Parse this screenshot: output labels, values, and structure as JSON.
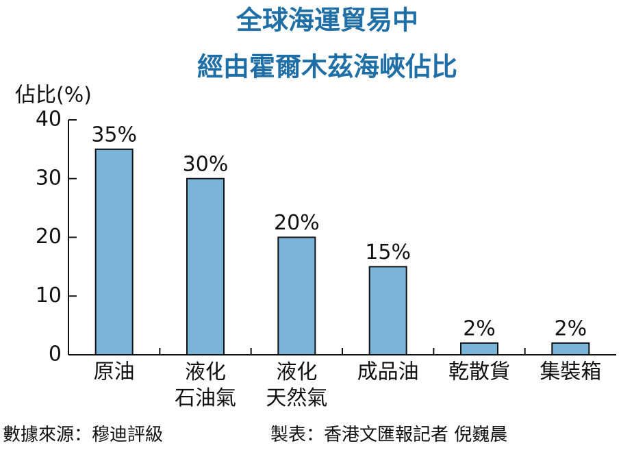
{
  "chart_data": {
    "type": "bar",
    "title": [
      "全球海運貿易中",
      "經由霍爾木茲海峽佔比"
    ],
    "y_label": "佔比(%)",
    "categories": [
      "原油",
      "液化\n石油氣",
      "液化\n天然氣",
      "成品油",
      "乾散貨",
      "集裝箱"
    ],
    "values": [
      35,
      30,
      20,
      15,
      2,
      2
    ],
    "value_labels": [
      "35%",
      "30%",
      "20%",
      "15%",
      "2%",
      "2%"
    ],
    "color": "#7ab4d8",
    "ylim": [
      0,
      40
    ],
    "yticks": [
      0,
      10,
      20,
      30,
      40
    ],
    "source": "數據來源：穆迪評級",
    "credit": "製表：香港文匯報記者 倪巍晨"
  }
}
